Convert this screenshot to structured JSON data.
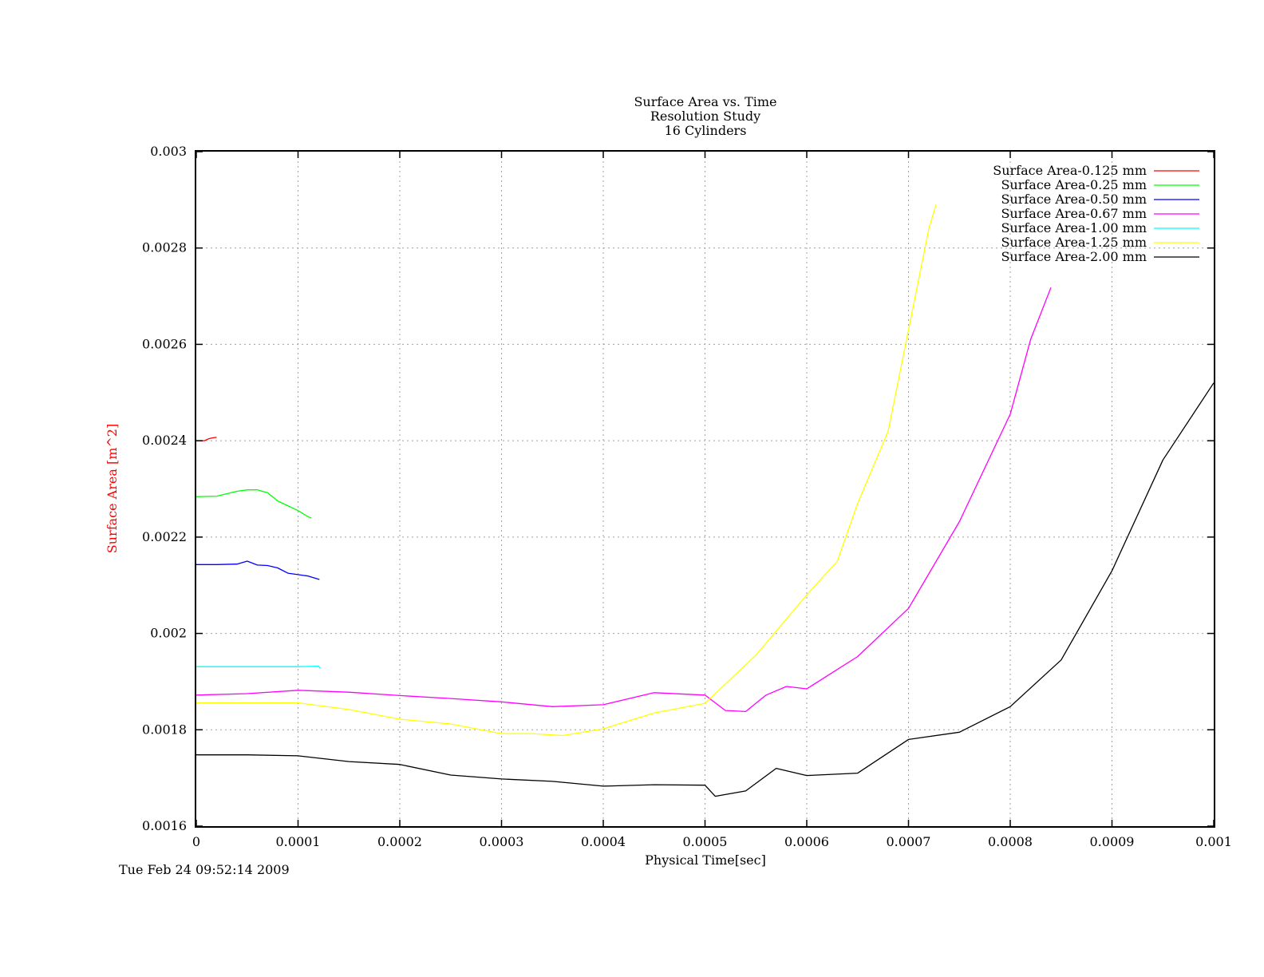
{
  "timestamp": "Tue Feb 24 09:52:14 2009",
  "colors": {
    "ylabel": "#ff0000",
    "grid": "#a0a0a0",
    "axis": "#000000"
  },
  "chart_data": {
    "type": "line",
    "title": [
      "Surface Area vs. Time",
      "Resolution Study",
      "16 Cylinders"
    ],
    "xlabel": "Physical Time[sec]",
    "ylabel": "Surface Area  [m^2]",
    "xlim": [
      0,
      0.001
    ],
    "ylim": [
      0.0016,
      0.003
    ],
    "xticks": [
      "0",
      "0.0001",
      "0.0002",
      "0.0003",
      "0.0004",
      "0.0005",
      "0.0006",
      "0.0007",
      "0.0008",
      "0.0009",
      "0.001"
    ],
    "yticks": [
      "0.0016",
      "0.0018",
      "0.002",
      "0.0022",
      "0.0024",
      "0.0026",
      "0.0028",
      "0.003"
    ],
    "grid": true,
    "legend_position": "top-right",
    "series": [
      {
        "name": "Surface Area-0.125 mm",
        "color": "#ff0000",
        "x": [
          0,
          8e-06,
          1.2e-05,
          1.6e-05,
          2e-05
        ],
        "y": [
          0.0024,
          0.0024,
          0.002404,
          0.002406,
          0.002407
        ]
      },
      {
        "name": "Surface Area-0.25 mm",
        "color": "#00ff00",
        "x": [
          0,
          2e-05,
          4e-05,
          5e-05,
          6e-05,
          7e-05,
          8e-05,
          9e-05,
          0.0001,
          0.00011,
          0.000113
        ],
        "y": [
          0.002284,
          0.002285,
          0.002295,
          0.002298,
          0.002298,
          0.002292,
          0.002275,
          0.002265,
          0.002255,
          0.002242,
          0.00224
        ]
      },
      {
        "name": "Surface Area-0.50 mm",
        "color": "#0000ff",
        "x": [
          0,
          2e-05,
          4e-05,
          5e-05,
          6e-05,
          7e-05,
          8e-05,
          9e-05,
          0.0001,
          0.00011,
          0.000121
        ],
        "y": [
          0.002143,
          0.002143,
          0.002144,
          0.00215,
          0.002142,
          0.002141,
          0.002136,
          0.002125,
          0.002122,
          0.002119,
          0.002112
        ]
      },
      {
        "name": "Surface Area-0.67 mm",
        "color": "#ff00ff",
        "x": [
          0,
          5e-05,
          0.0001,
          0.00015,
          0.0002,
          0.00025,
          0.0003,
          0.00035,
          0.0004,
          0.00045,
          0.0005,
          0.00052,
          0.00054,
          0.00056,
          0.00058,
          0.0006,
          0.00065,
          0.0007,
          0.00075,
          0.0008,
          0.00082,
          0.00084
        ],
        "y": [
          0.001872,
          0.001875,
          0.001882,
          0.001878,
          0.001871,
          0.001865,
          0.001858,
          0.001848,
          0.001852,
          0.001877,
          0.001872,
          0.00184,
          0.001838,
          0.001872,
          0.00189,
          0.001885,
          0.001952,
          0.002052,
          0.002232,
          0.002455,
          0.00261,
          0.002718
        ]
      },
      {
        "name": "Surface Area-1.00 mm",
        "color": "#00ffff",
        "x": [
          0,
          5e-05,
          0.0001,
          0.00012,
          0.000122
        ],
        "y": [
          0.001931,
          0.001931,
          0.001931,
          0.001932,
          0.001928
        ]
      },
      {
        "name": "Surface Area-1.25 mm",
        "color": "#ffff00",
        "x": [
          0,
          5e-05,
          0.0001,
          0.00015,
          0.0002,
          0.00025,
          0.0003,
          0.00033,
          0.00036,
          0.0004,
          0.00045,
          0.0005,
          0.00055,
          0.0006,
          0.00063,
          0.00065,
          0.00068,
          0.0007,
          0.00072,
          0.000727
        ],
        "y": [
          0.001856,
          0.001856,
          0.001856,
          0.001842,
          0.001822,
          0.001812,
          0.001792,
          0.001792,
          0.001788,
          0.001802,
          0.001835,
          0.001855,
          0.001955,
          0.00208,
          0.00215,
          0.00227,
          0.00242,
          0.00263,
          0.00284,
          0.00289
        ]
      },
      {
        "name": "Surface Area-2.00 mm",
        "color": "#000000",
        "x": [
          0,
          5e-05,
          0.0001,
          0.00015,
          0.0002,
          0.00025,
          0.0003,
          0.00035,
          0.0004,
          0.00045,
          0.0005,
          0.00051,
          0.00054,
          0.00057,
          0.0006,
          0.00065,
          0.0007,
          0.00075,
          0.0008,
          0.00085,
          0.0009,
          0.00095,
          0.001
        ],
        "y": [
          0.001748,
          0.001748,
          0.001746,
          0.001734,
          0.001728,
          0.001706,
          0.001698,
          0.001693,
          0.001683,
          0.001686,
          0.001685,
          0.001662,
          0.001673,
          0.00172,
          0.001705,
          0.00171,
          0.00178,
          0.001795,
          0.001848,
          0.001945,
          0.00213,
          0.00236,
          0.00252
        ]
      }
    ]
  }
}
